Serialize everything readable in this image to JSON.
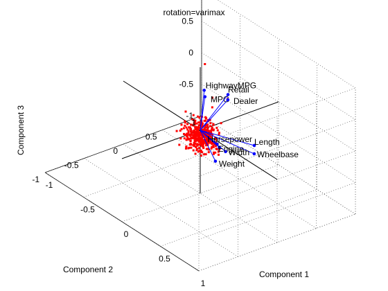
{
  "chart_data": {
    "type": "scatter",
    "subtype": "biplot-3d",
    "title": "rotation=varimax",
    "xlabel": "Component 1",
    "ylabel": "Component 2",
    "zlabel": "Component 3",
    "xlim": [
      -1,
      1
    ],
    "ylim": [
      -1,
      1
    ],
    "zlim": [
      -1,
      1
    ],
    "x_ticks": [
      "-1",
      "-0.5",
      "0",
      "0.5",
      "1"
    ],
    "y_ticks": [
      "-1",
      "-0.5",
      "0",
      "0.5",
      "1"
    ],
    "z_ticks": [
      "-1",
      "-0.5",
      "0",
      "0.5",
      "1"
    ],
    "grid": true,
    "colors": {
      "vectors": "#0000ff",
      "observations": "#ff0000",
      "axes": "#000000",
      "grid": "#555555"
    },
    "vectors": [
      {
        "label": "HighwayMPG",
        "x": -0.05,
        "y": 0.1,
        "z": 0.55
      },
      {
        "label": "MPG",
        "x": -0.02,
        "y": 0.08,
        "z": 0.48
      },
      {
        "label": "Length",
        "x": 0.55,
        "y": 0.15,
        "z": 0.12
      },
      {
        "label": "Wheelbase",
        "x": 0.6,
        "y": 0.1,
        "z": 0.05
      },
      {
        "label": "Width",
        "x": 0.38,
        "y": -0.05,
        "z": -0.02
      },
      {
        "label": "Engine",
        "x": 0.3,
        "y": -0.05,
        "z": -0.02
      },
      {
        "label": "Horsepower",
        "x": 0.25,
        "y": -0.03,
        "z": -0.01
      },
      {
        "label": "Weight",
        "x": 0.35,
        "y": -0.15,
        "z": -0.15
      },
      {
        "label": "Retail",
        "x": -0.25,
        "y": 0.6,
        "z": 0.1
      },
      {
        "label": "Dealer",
        "x": -0.2,
        "y": 0.55,
        "z": 0.08
      }
    ],
    "observations_count": 380
  }
}
